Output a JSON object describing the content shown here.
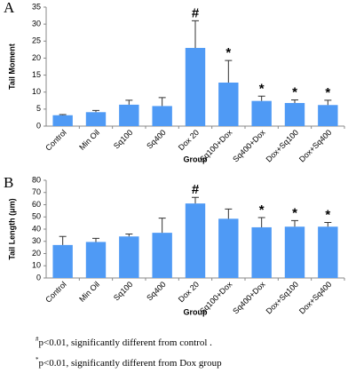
{
  "chart_data": [
    {
      "type": "bar",
      "panel_label": "A",
      "ylabel": "Tail Moment",
      "xlabel": "Group",
      "categories": [
        "Control",
        "Min Oil",
        "Sq100",
        "Sq400",
        "Dox 20",
        "Sq100+Dox",
        "Sq400+Dox",
        "Dox+Sq100",
        "Dox+Sq400"
      ],
      "values": [
        3.2,
        4.1,
        6.3,
        5.9,
        23,
        12.8,
        7.4,
        6.8,
        6.2
      ],
      "errors": [
        0.2,
        0.5,
        1.3,
        2.5,
        8,
        6.5,
        1.4,
        0.9,
        1.4
      ],
      "markers": [
        null,
        null,
        null,
        null,
        "#",
        "*",
        "*",
        "*",
        "*"
      ],
      "color": "#4f9af5",
      "ylim": [
        0,
        35
      ],
      "yticks": [
        0,
        5,
        10,
        15,
        20,
        25,
        30,
        35
      ]
    },
    {
      "type": "bar",
      "panel_label": "B",
      "ylabel": "Tail Length (μm)",
      "xlabel": "Group",
      "categories": [
        "Control",
        "Min Oil",
        "Sq100",
        "Sq400",
        "Dox 20",
        "Sq100+Dox",
        "Sq400+Dox",
        "Dox+Sq100",
        "Dox+Sq400"
      ],
      "values": [
        27,
        29.5,
        34,
        37,
        61,
        48.5,
        41.5,
        42,
        42
      ],
      "errors": [
        7,
        3,
        2,
        12,
        5,
        8,
        8,
        5,
        3.5
      ],
      "markers": [
        null,
        null,
        null,
        null,
        "#",
        null,
        "*",
        "*",
        "*"
      ],
      "color": "#4f9af5",
      "ylim": [
        0,
        80
      ],
      "yticks": [
        0,
        10,
        20,
        30,
        40,
        50,
        60,
        70,
        80
      ]
    }
  ],
  "footnotes": [
    {
      "symbol": "#",
      "text": "p<0.01, significantly different from control ."
    },
    {
      "symbol": "*",
      "text": "p<0.01, significantly different from Dox group"
    }
  ]
}
